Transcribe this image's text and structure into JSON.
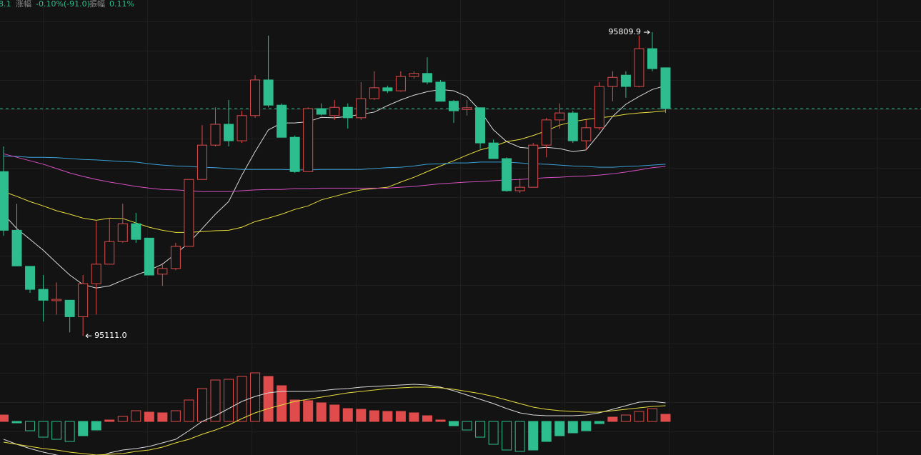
{
  "chart_data": {
    "type": "candlestick",
    "info": [
      {
        "text": "8.1"
      },
      {
        "label": "涨幅",
        "text": "-0.10%(-91.0)"
      },
      {
        "label": "振幅",
        "text": "0.11%"
      }
    ],
    "annotations": {
      "high": "95809.9",
      "low": "95111.0"
    },
    "up_color": "#e04b4b",
    "down_color": "#2dbd8e",
    "ylim": [
      95062,
      95884
    ],
    "open": [
      95489,
      95354,
      95271,
      95218,
      95192,
      95193,
      95155,
      95231,
      95276,
      95328,
      95369,
      95336,
      95253,
      95266,
      95317,
      95471,
      95550,
      95598,
      95560,
      95618,
      95700,
      95642,
      95568,
      95489,
      95634,
      95618,
      95637,
      95613,
      95657,
      95682,
      95675,
      95708,
      95715,
      95695,
      95651,
      95632,
      95636,
      95555,
      95519,
      95445,
      95453,
      95550,
      95608,
      95624,
      95560,
      95590,
      95685,
      95711,
      95685,
      95772,
      95728
    ],
    "high": [
      95547,
      95415,
      95271,
      95251,
      95234,
      95193,
      95251,
      95374,
      95382,
      95415,
      95394,
      95336,
      95279,
      95325,
      95471,
      95596,
      95637,
      95654,
      95629,
      95711,
      95802,
      95646,
      95572,
      95637,
      95646,
      95654,
      95646,
      95695,
      95720,
      95687,
      95720,
      95720,
      95752,
      95700,
      95654,
      95654,
      95637,
      95563,
      95522,
      95473,
      95555,
      95613,
      95646,
      95629,
      95608,
      95695,
      95720,
      95720,
      95802,
      95809.9,
      95728
    ],
    "low": [
      95341,
      95272,
      95210,
      95144,
      95160,
      95119,
      95111.0,
      95160,
      95276,
      95325,
      95325,
      95251,
      95226,
      95262,
      95317,
      95471,
      95547,
      95547,
      95555,
      95613,
      95637,
      95568,
      95486,
      95489,
      95618,
      95608,
      95588,
      95608,
      95654,
      95670,
      95673,
      95703,
      95690,
      95651,
      95601,
      95618,
      95542,
      95519,
      95443,
      95440,
      95453,
      95522,
      95588,
      95555,
      95539,
      95585,
      95651,
      95659,
      95683,
      95720,
      95624
    ],
    "close": [
      95354,
      95272,
      95218,
      95193,
      95195,
      95155,
      95231,
      95276,
      95328,
      95369,
      95333,
      95251,
      95266,
      95317,
      95471,
      95550,
      95598,
      95560,
      95618,
      95700,
      95642,
      95568,
      95489,
      95634,
      95621,
      95637,
      95613,
      95657,
      95682,
      95675,
      95708,
      95715,
      95695,
      95651,
      95629,
      95636,
      95555,
      95519,
      95445,
      95453,
      95550,
      95608,
      95624,
      95560,
      95590,
      95685,
      95706,
      95685,
      95772,
      95726,
      95634
    ],
    "ma_lines": [
      {
        "color": "#d8d8d8",
        "values": [
          95391,
          95358,
          95333,
          95308,
          95279,
          95251,
          95229,
          95221,
          95226,
          95239,
          95251,
          95262,
          95276,
          95300,
          95325,
          95358,
          95391,
          95420,
          95481,
          95535,
          95585,
          95601,
          95601,
          95604,
          95614,
          95613,
          95616,
          95621,
          95626,
          95641,
          95654,
          95665,
          95673,
          95678,
          95675,
          95662,
          95629,
          95585,
          95558,
          95545,
          95542,
          95545,
          95542,
          95535,
          95539,
          95576,
          95616,
          95644,
          95662,
          95678,
          95687
        ]
      },
      {
        "color": "#e6dc3c",
        "values": [
          95443,
          95432,
          95420,
          95410,
          95399,
          95391,
          95382,
          95377,
          95382,
          95381,
          95371,
          95361,
          95354,
          95349,
          95349,
          95351,
          95353,
          95354,
          95361,
          95374,
          95382,
          95391,
          95402,
          95410,
          95424,
          95432,
          95440,
          95447,
          95450,
          95453,
          95465,
          95476,
          95489,
          95502,
          95514,
          95527,
          95539,
          95547,
          95558,
          95563,
          95572,
          95583,
          95596,
          95604,
          95609,
          95613,
          95616,
          95621,
          95624,
          95626,
          95629
        ]
      },
      {
        "color": "#3a9fd6",
        "values": [
          95525,
          95524,
          95522,
          95522,
          95521,
          95519,
          95517,
          95516,
          95514,
          95512,
          95511,
          95507,
          95504,
          95502,
          95501,
          95499,
          95498,
          95496,
          95494,
          95494,
          95494,
          95494,
          95493,
          95493,
          95494,
          95494,
          95494,
          95494,
          95496,
          95498,
          95499,
          95502,
          95506,
          95507,
          95509,
          95509,
          95511,
          95511,
          95511,
          95509,
          95507,
          95506,
          95504,
          95502,
          95501,
          95499,
          95499,
          95501,
          95502,
          95504,
          95506
        ]
      },
      {
        "color": "#d44fbf",
        "values": [
          95530,
          95522,
          95514,
          95506,
          95496,
          95486,
          95478,
          95471,
          95465,
          95460,
          95455,
          95451,
          95448,
          95447,
          95445,
          95443,
          95443,
          95443,
          95445,
          95447,
          95448,
          95448,
          95450,
          95450,
          95451,
          95451,
          95451,
          95451,
          95451,
          95451,
          95453,
          95455,
          95458,
          95461,
          95463,
          95465,
          95466,
          95468,
          95470,
          95471,
          95473,
          95475,
          95476,
          95478,
          95479,
          95481,
          95484,
          95488,
          95493,
          95498,
          95501
        ]
      }
    ],
    "macd": {
      "ylim": [
        -47,
        70
      ],
      "histogram": [
        9,
        -2,
        -13,
        -22,
        -25,
        -28,
        -20,
        -12,
        2,
        7,
        15,
        13,
        12,
        15,
        30,
        46,
        58,
        59,
        63,
        68,
        63,
        50,
        30,
        29,
        26,
        23,
        18,
        17,
        15,
        14,
        14,
        12,
        8,
        2,
        -6,
        -12,
        -22,
        -32,
        -40,
        -42,
        -40,
        -28,
        -20,
        -16,
        -13,
        -3,
        6,
        9,
        14,
        18,
        10
      ],
      "lines": [
        {
          "color": "#d8d8d8",
          "values": [
            -25,
            -32,
            -38,
            -43,
            -47,
            -50,
            -52,
            -51,
            -44,
            -40,
            -38,
            -35,
            -30,
            -25,
            -13,
            0,
            8,
            18,
            28,
            35,
            40,
            42,
            42,
            42,
            43,
            45,
            46,
            48,
            49,
            50,
            51,
            52,
            51,
            48,
            43,
            37,
            31,
            25,
            18,
            12,
            9,
            8,
            8,
            8,
            9,
            12,
            17,
            22,
            27,
            28,
            26
          ]
        },
        {
          "color": "#e6dc3c",
          "values": [
            -29,
            -32,
            -35,
            -38,
            -40,
            -43,
            -45,
            -47,
            -46,
            -45,
            -42,
            -40,
            -36,
            -30,
            -25,
            -18,
            -12,
            -5,
            4,
            12,
            18,
            23,
            28,
            31,
            34,
            37,
            40,
            42,
            44,
            46,
            47,
            48,
            48,
            47,
            45,
            42,
            39,
            35,
            30,
            25,
            20,
            17,
            15,
            14,
            13,
            13,
            15,
            17,
            19,
            21,
            22
          ]
        }
      ]
    }
  }
}
